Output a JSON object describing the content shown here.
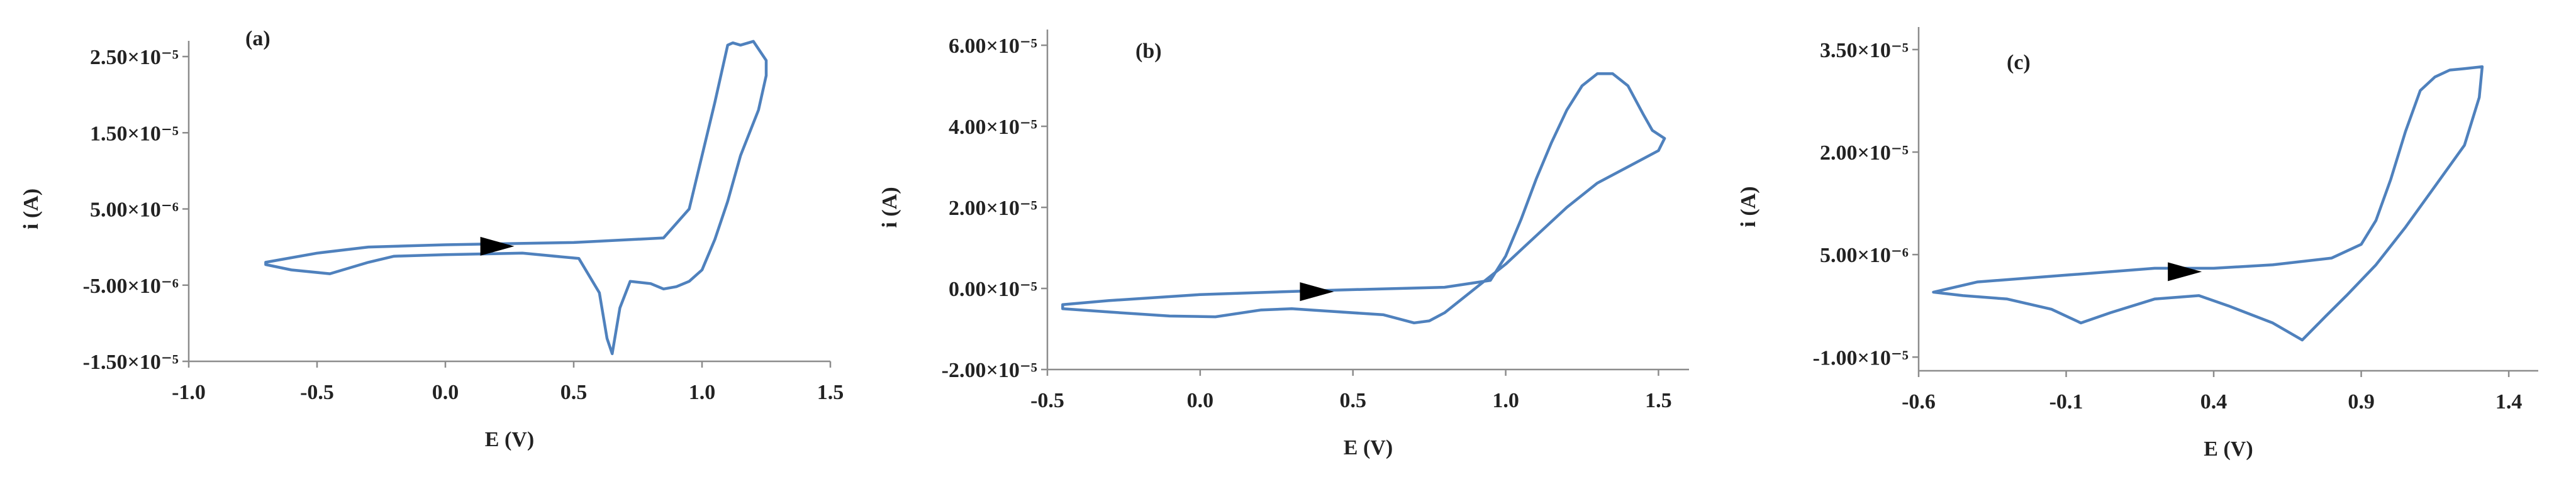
{
  "colors": {
    "curve": "#4f81bd",
    "arrow": "#000000",
    "axis": "#8c8c8c"
  },
  "chart_data": [
    {
      "type": "line",
      "panel_label": "(a)",
      "xlabel": "E (V)",
      "ylabel": "i (A)",
      "xlim": [
        -1.0,
        1.5
      ],
      "ylim": [
        -1.5e-05,
        2.5e-05
      ],
      "x_ticks": [
        -1.0,
        -0.5,
        0.0,
        0.5,
        1.0,
        1.5
      ],
      "x_tick_labels": [
        "-1.0",
        "-0.5",
        "0.0",
        "0.5",
        "1.0",
        "1.5"
      ],
      "y_ticks": [
        2.5e-05,
        1.5e-05,
        5e-06,
        -5e-06,
        -1.5e-05
      ],
      "y_tick_labels": [
        "2.50×10⁻⁵",
        "1.50×10⁻⁵",
        "5.00×10⁻⁶",
        "-5.00×10⁻⁶",
        "-1.50×10⁻⁵"
      ],
      "arrow": {
        "x": 0.2,
        "y": 1e-07,
        "direction": "right"
      },
      "series": [
        {
          "x": [
            -0.7,
            -0.5,
            -0.3,
            0.0,
            0.5,
            0.85,
            0.95,
            1.0,
            1.05,
            1.1,
            1.12,
            1.15,
            1.2,
            1.25,
            1.25,
            1.22,
            1.15,
            1.1,
            1.05,
            1.0,
            0.95,
            0.9,
            0.85,
            0.8,
            0.72,
            0.68,
            0.65,
            0.63,
            0.6,
            0.52,
            0.3,
            0.0,
            -0.2,
            -0.3,
            -0.45,
            -0.6,
            -0.7
          ],
          "y": [
            -2e-06,
            -8e-07,
            0.0,
            3e-07,
            6e-07,
            1.2e-06,
            5e-06,
            1.2e-05,
            1.9e-05,
            2.65e-05,
            2.68e-05,
            2.65e-05,
            2.7e-05,
            2.45e-05,
            2.25e-05,
            1.8e-05,
            1.2e-05,
            6e-06,
            1e-06,
            -3e-06,
            -4.5e-06,
            -5.2e-06,
            -5.5e-06,
            -4.8e-06,
            -4.5e-06,
            -8e-06,
            -1.4e-05,
            -1.2e-05,
            -6e-06,
            -1.5e-06,
            -8e-07,
            -1e-06,
            -1.2e-06,
            -2e-06,
            -3.5e-06,
            -3e-06,
            -2.3e-06
          ]
        }
      ]
    },
    {
      "type": "line",
      "panel_label": "(b)",
      "xlabel": "E (V)",
      "ylabel": "i (A)",
      "xlim": [
        -0.5,
        1.6
      ],
      "ylim": [
        -2e-05,
        6e-05
      ],
      "x_ticks": [
        -0.5,
        0.0,
        0.5,
        1.0,
        1.5
      ],
      "x_tick_labels": [
        "-0.5",
        "0.0",
        "0.5",
        "1.0",
        "1.5"
      ],
      "y_ticks": [
        6e-05,
        4e-05,
        2e-05,
        0.0,
        -2e-05
      ],
      "y_tick_labels": [
        "6.00×10⁻⁵",
        "4.00×10⁻⁵",
        "2.00×10⁻⁵",
        "0.00×10⁻⁵",
        "-2.00×10⁻⁵"
      ],
      "arrow": {
        "x": 0.38,
        "y": -8e-07,
        "direction": "right"
      },
      "series": [
        {
          "x": [
            -0.45,
            -0.3,
            0.0,
            0.4,
            0.8,
            0.95,
            1.0,
            1.05,
            1.1,
            1.15,
            1.2,
            1.25,
            1.3,
            1.35,
            1.4,
            1.45,
            1.48,
            1.52,
            1.5,
            1.4,
            1.3,
            1.2,
            1.1,
            1.0,
            0.9,
            0.8,
            0.75,
            0.7,
            0.6,
            0.4,
            0.3,
            0.2,
            0.05,
            -0.1,
            -0.3,
            -0.45
          ],
          "y": [
            -4e-06,
            -3e-06,
            -1.5e-06,
            -5e-07,
            3e-07,
            2e-06,
            8e-06,
            1.7e-05,
            2.7e-05,
            3.6e-05,
            4.4e-05,
            5e-05,
            5.3e-05,
            5.3e-05,
            5e-05,
            4.3e-05,
            3.9e-05,
            3.7e-05,
            3.4e-05,
            3e-05,
            2.6e-05,
            2e-05,
            1.3e-05,
            6e-06,
            0.0,
            -6e-06,
            -8e-06,
            -8.5e-06,
            -6.5e-06,
            -5.5e-06,
            -5e-06,
            -5.3e-06,
            -7e-06,
            -6.8e-06,
            -5.8e-06,
            -5e-06
          ]
        }
      ]
    },
    {
      "type": "line",
      "panel_label": "(c)",
      "xlabel": "E (V)",
      "ylabel": "i (A)",
      "xlim": [
        -0.6,
        1.5
      ],
      "ylim": [
        -1.2e-05,
        3.6e-05
      ],
      "x_ticks": [
        -0.6,
        -0.1,
        0.4,
        0.9,
        1.4
      ],
      "x_tick_labels": [
        "-0.6",
        "-0.1",
        "0.4",
        "0.9",
        "1.4"
      ],
      "y_ticks": [
        3.5e-05,
        2e-05,
        5e-06,
        -1e-05
      ],
      "y_tick_labels": [
        "3.50×10⁻⁵",
        "2.00×10⁻⁵",
        "5.00×10⁻⁶",
        "-1.00×10⁻⁵"
      ],
      "arrow": {
        "x": 0.3,
        "y": 2.5e-06,
        "direction": "right"
      },
      "series": [
        {
          "x": [
            -0.55,
            -0.4,
            -0.1,
            0.2,
            0.4,
            0.6,
            0.8,
            0.9,
            0.95,
            1.0,
            1.05,
            1.1,
            1.15,
            1.2,
            1.25,
            1.31,
            1.3,
            1.25,
            1.15,
            1.05,
            0.95,
            0.85,
            0.78,
            0.7,
            0.6,
            0.45,
            0.35,
            0.2,
            0.05,
            -0.05,
            -0.15,
            -0.3,
            -0.45,
            -0.55
          ],
          "y": [
            -5e-07,
            1e-06,
            2e-06,
            3e-06,
            3e-06,
            3.5e-06,
            4.5e-06,
            6.5e-06,
            1e-05,
            1.6e-05,
            2.3e-05,
            2.9e-05,
            3.1e-05,
            3.2e-05,
            3.22e-05,
            3.25e-05,
            2.8e-05,
            2.1e-05,
            1.5e-05,
            9e-06,
            3.5e-06,
            -1e-06,
            -4e-06,
            -7.5e-06,
            -5e-06,
            -2.5e-06,
            -1e-06,
            -1.5e-06,
            -3.5e-06,
            -5e-06,
            -3e-06,
            -1.5e-06,
            -1e-06,
            -5e-07
          ]
        }
      ]
    }
  ]
}
